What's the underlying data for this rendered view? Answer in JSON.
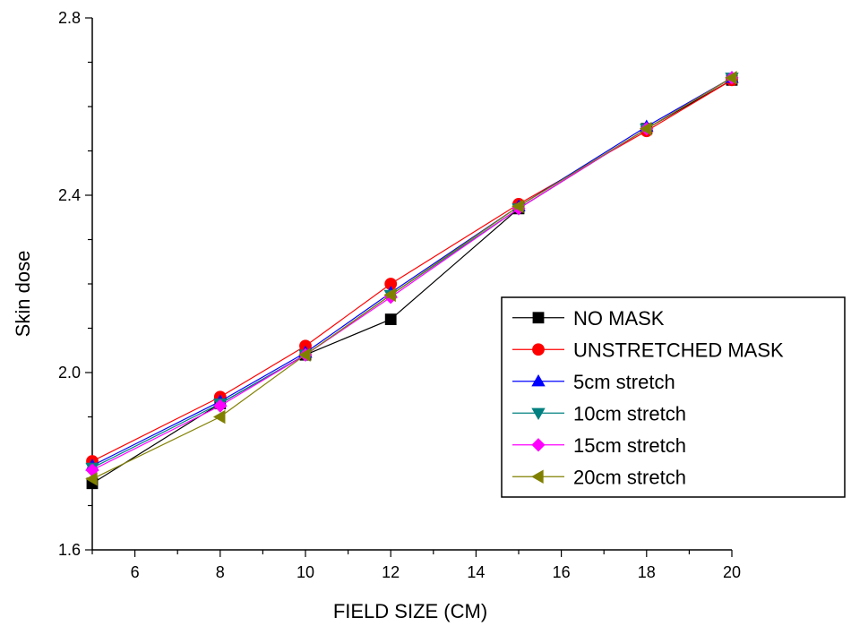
{
  "chart_data": {
    "type": "line",
    "xlabel": "FIELD SIZE (CM)",
    "ylabel": "Skin dose",
    "xlim": [
      5,
      20
    ],
    "ylim": [
      1.6,
      2.8
    ],
    "xticks": [
      6,
      8,
      10,
      12,
      14,
      16,
      18,
      20
    ],
    "yticks": [
      1.6,
      2.0,
      2.4,
      2.8
    ],
    "legend_position": "right",
    "x": [
      5,
      8,
      10,
      12,
      15,
      18,
      20
    ],
    "series": [
      {
        "name": "NO MASK",
        "color": "#000000",
        "marker": "square",
        "values": [
          1.75,
          1.93,
          2.04,
          2.12,
          2.37,
          2.55,
          2.66
        ]
      },
      {
        "name": "UNSTRETCHED MASK",
        "color": "#ff0000",
        "marker": "circle",
        "values": [
          1.8,
          1.945,
          2.06,
          2.2,
          2.38,
          2.545,
          2.66
        ]
      },
      {
        "name": "5cm stretch",
        "color": "#0000ff",
        "marker": "triangle-up",
        "values": [
          1.79,
          1.935,
          2.045,
          2.18,
          2.375,
          2.555,
          2.665
        ]
      },
      {
        "name": "10cm stretch",
        "color": "#008080",
        "marker": "triangle-down",
        "values": [
          1.785,
          1.93,
          2.04,
          2.175,
          2.37,
          2.55,
          2.665
        ]
      },
      {
        "name": "15cm stretch",
        "color": "#ff00ff",
        "marker": "diamond",
        "values": [
          1.78,
          1.925,
          2.04,
          2.17,
          2.37,
          2.55,
          2.665
        ]
      },
      {
        "name": "20cm stretch",
        "color": "#808000",
        "marker": "triangle-left",
        "values": [
          1.76,
          1.9,
          2.04,
          2.175,
          2.375,
          2.55,
          2.665
        ]
      }
    ]
  }
}
